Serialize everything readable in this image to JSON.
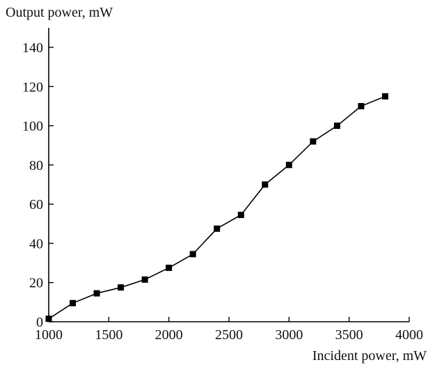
{
  "chart_data": {
    "type": "line",
    "title": "",
    "xlabel": "Incident power, mW",
    "ylabel": "Output power, mW",
    "xlim": [
      1000,
      4000
    ],
    "ylim": [
      0,
      150
    ],
    "x_ticks": [
      1000,
      1500,
      2000,
      2500,
      3000,
      3500,
      4000
    ],
    "y_ticks": [
      0,
      20,
      40,
      60,
      80,
      100,
      120,
      140
    ],
    "x_tick_labels": [
      "1000",
      "1500",
      "2000",
      "2500",
      "3000",
      "3500",
      "4000"
    ],
    "y_tick_labels": [
      "0",
      "20",
      "40",
      "60",
      "80",
      "100",
      "120",
      "140"
    ],
    "grid": false,
    "marker": "square",
    "color": "#000000",
    "series": [
      {
        "x": [
          1000,
          1200,
          1400,
          1600,
          1800,
          2000,
          2200,
          2400,
          2600,
          2800,
          3000,
          3200,
          3400,
          3600,
          3800
        ],
        "y": [
          1.5,
          9.5,
          14.5,
          17.5,
          21.5,
          27.5,
          34.5,
          47.5,
          54.5,
          70,
          80,
          92,
          100,
          110,
          115
        ]
      }
    ]
  }
}
